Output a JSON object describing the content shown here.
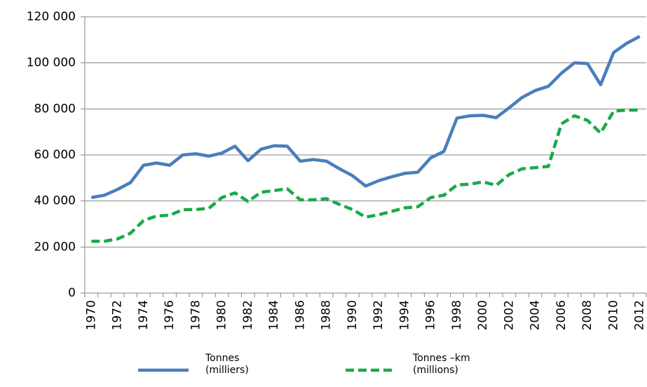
{
  "chart_data": {
    "type": "line",
    "categories": [
      "1970",
      null,
      "1972",
      null,
      "1974",
      null,
      "1976",
      null,
      "1978",
      null,
      "1980",
      null,
      "1982",
      null,
      "1984",
      null,
      "1986",
      null,
      "1988",
      null,
      "1990",
      null,
      "1992",
      null,
      "1994",
      null,
      "1996",
      null,
      "1998",
      null,
      "2000",
      null,
      "2002",
      null,
      "2004",
      null,
      "2006",
      null,
      "2008",
      null,
      "2010",
      null,
      "2012"
    ],
    "series": [
      {
        "name": "Tonnes (milliers)",
        "color": "#4a7ebb",
        "dash": false,
        "values": [
          41500,
          42500,
          45000,
          48000,
          55500,
          56500,
          55500,
          60000,
          60500,
          59500,
          60800,
          63800,
          57500,
          62500,
          64000,
          63800,
          57300,
          58000,
          57300,
          54000,
          51000,
          46500,
          48800,
          50500,
          52000,
          52500,
          58800,
          61500,
          76000,
          77000,
          77200,
          76200,
          80500,
          85000,
          88000,
          89800,
          95500,
          100000,
          99700,
          90500,
          104500,
          108500,
          111500
        ]
      },
      {
        "name": "Tonnes –km (millions)",
        "color": "#1aa94a",
        "dash": true,
        "values": [
          22500,
          22500,
          23500,
          26000,
          31500,
          33500,
          33800,
          36200,
          36300,
          36800,
          41500,
          43500,
          39800,
          43800,
          44500,
          45300,
          40500,
          40500,
          41000,
          38500,
          36300,
          33000,
          34000,
          35500,
          37000,
          37500,
          41500,
          42500,
          47000,
          47300,
          48300,
          46800,
          51500,
          54000,
          54500,
          55000,
          73500,
          77000,
          75000,
          69500,
          79000,
          79500,
          79500
        ]
      }
    ],
    "ylim": [
      0,
      120000
    ],
    "yticks": [
      0,
      {
        "value": 20000,
        "label": "20 000"
      },
      {
        "value": 40000,
        "label": "40 000"
      },
      {
        "value": 60000,
        "label": "60 000"
      },
      {
        "value": 80000,
        "label": "80 000"
      },
      {
        "value": 100000,
        "label": "100 000"
      },
      {
        "value": 120000,
        "label": "120 000"
      }
    ],
    "grid": true,
    "legend": "bottom"
  }
}
